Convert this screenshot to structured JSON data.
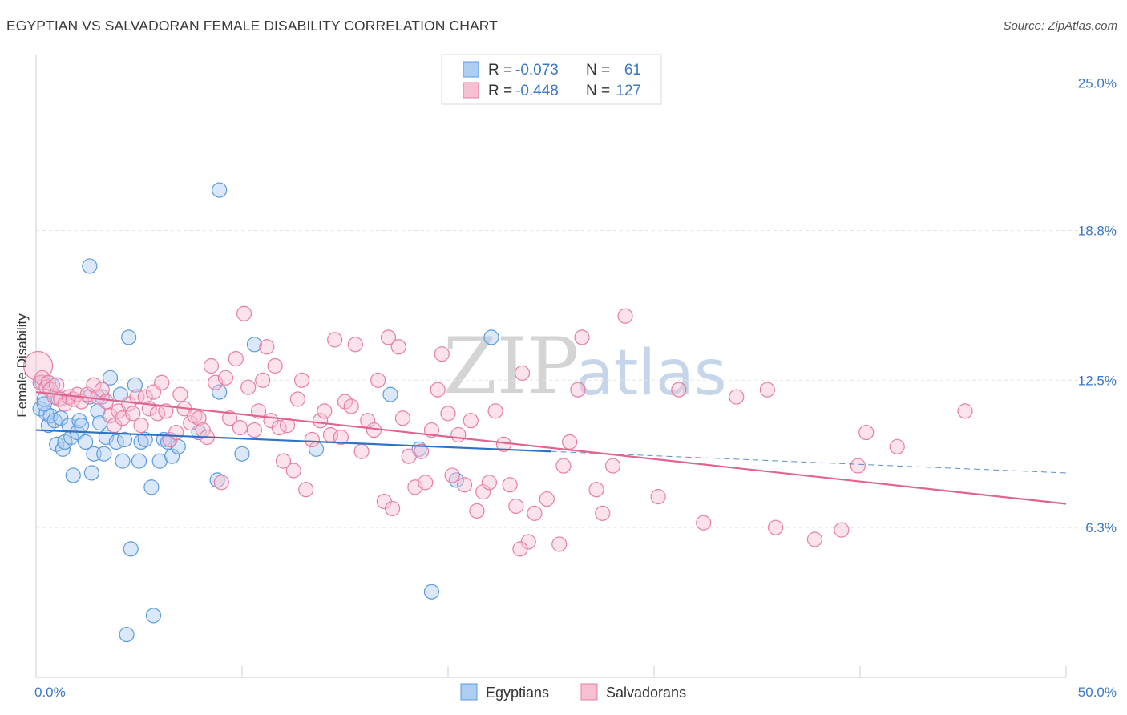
{
  "title": "EGYPTIAN VS SALVADORAN FEMALE DISABILITY CORRELATION CHART",
  "source": "Source: ZipAtlas.com",
  "watermark": {
    "zip": "ZIP",
    "atlas": "atlas"
  },
  "colors": {
    "egyptians": "#5b9be0",
    "egyptians_fill": "#aecdf2",
    "egyptians_line": "#2f73c9",
    "salvadorans": "#e87ea3",
    "salvadorans_fill": "#f6bfd2",
    "salvadorans_line": "#e0648f",
    "tick_label": "#3b78c8"
  },
  "legend": {
    "rows": [
      {
        "r_label": "R =",
        "r_value": "-0.073",
        "n_label": "N =",
        "n_value": "61"
      },
      {
        "r_label": "R =",
        "r_value": "-0.448",
        "n_label": "N =",
        "n_value": "127"
      }
    ]
  },
  "bottom_legend": [
    "Egyptians",
    "Salvadorans"
  ],
  "chart_data": {
    "type": "scatter",
    "title": "EGYPTIAN VS SALVADORAN FEMALE DISABILITY CORRELATION CHART",
    "xlabel": "",
    "ylabel": "Female Disability",
    "xlim": [
      0,
      50
    ],
    "ylim": [
      0,
      26.2
    ],
    "x_tick_labels": [
      "0.0%",
      "50.0%"
    ],
    "y_ticks": [
      6.3,
      12.5,
      18.8,
      25.0
    ],
    "y_tick_labels": [
      "6.3%",
      "12.5%",
      "18.8%",
      "25.0%"
    ],
    "grid": true,
    "legend_position": "top-center",
    "series": [
      {
        "name": "Egyptians",
        "r": -0.073,
        "n": 61,
        "trend": {
          "x0": 0,
          "y0": 10.4,
          "x1": 25,
          "y1": 9.5,
          "dashed_to_x": 50,
          "dashed_to_y": 8.6
        },
        "points": [
          [
            0.2,
            11.3
          ],
          [
            0.3,
            12.4
          ],
          [
            0.4,
            11.7
          ],
          [
            0.5,
            11.1
          ],
          [
            0.6,
            10.6
          ],
          [
            0.7,
            11.0
          ],
          [
            0.8,
            12.3
          ],
          [
            0.9,
            10.8
          ],
          [
            1.0,
            9.8
          ],
          [
            1.1,
            11.7
          ],
          [
            1.2,
            10.9
          ],
          [
            1.3,
            9.6
          ],
          [
            1.4,
            9.9
          ],
          [
            1.6,
            10.6
          ],
          [
            1.7,
            10.1
          ],
          [
            1.8,
            8.5
          ],
          [
            2.0,
            10.3
          ],
          [
            2.1,
            10.8
          ],
          [
            2.2,
            10.6
          ],
          [
            2.4,
            9.9
          ],
          [
            2.6,
            11.8
          ],
          [
            2.7,
            8.6
          ],
          [
            2.8,
            9.4
          ],
          [
            3.0,
            11.2
          ],
          [
            3.1,
            10.7
          ],
          [
            3.2,
            11.8
          ],
          [
            3.3,
            9.4
          ],
          [
            3.4,
            10.1
          ],
          [
            2.6,
            17.3
          ],
          [
            3.6,
            12.6
          ],
          [
            3.9,
            9.9
          ],
          [
            4.1,
            11.9
          ],
          [
            4.2,
            9.1
          ],
          [
            4.3,
            10.0
          ],
          [
            4.5,
            14.3
          ],
          [
            4.8,
            12.3
          ],
          [
            5.0,
            9.1
          ],
          [
            5.1,
            9.9
          ],
          [
            5.3,
            10.0
          ],
          [
            5.6,
            8.0
          ],
          [
            6.0,
            9.1
          ],
          [
            6.2,
            10.0
          ],
          [
            6.4,
            9.9
          ],
          [
            6.6,
            9.3
          ],
          [
            6.9,
            9.7
          ],
          [
            7.9,
            10.3
          ],
          [
            8.8,
            8.3
          ],
          [
            8.9,
            12.0
          ],
          [
            8.9,
            20.5
          ],
          [
            10.0,
            9.4
          ],
          [
            10.6,
            14.0
          ],
          [
            13.6,
            9.6
          ],
          [
            17.2,
            11.9
          ],
          [
            18.6,
            9.6
          ],
          [
            19.2,
            3.6
          ],
          [
            20.4,
            8.3
          ],
          [
            22.1,
            14.3
          ],
          [
            4.4,
            1.8
          ],
          [
            5.7,
            2.6
          ],
          [
            4.6,
            5.4
          ],
          [
            0.4,
            11.5
          ]
        ]
      },
      {
        "name": "Salvadorans",
        "r": -0.448,
        "n": 127,
        "trend": {
          "x0": 0,
          "y0": 12.0,
          "x1": 50,
          "y1": 7.3
        },
        "points": [
          [
            0.1,
            13.1
          ],
          [
            0.2,
            12.4
          ],
          [
            0.3,
            12.6
          ],
          [
            0.5,
            12.2
          ],
          [
            0.6,
            12.4
          ],
          [
            0.7,
            12.1
          ],
          [
            0.9,
            11.8
          ],
          [
            1.0,
            12.3
          ],
          [
            1.2,
            11.7
          ],
          [
            1.4,
            11.5
          ],
          [
            1.6,
            11.8
          ],
          [
            1.8,
            11.7
          ],
          [
            2.0,
            11.9
          ],
          [
            2.2,
            11.6
          ],
          [
            2.5,
            11.9
          ],
          [
            2.8,
            12.3
          ],
          [
            3.0,
            11.8
          ],
          [
            3.2,
            12.1
          ],
          [
            3.4,
            11.6
          ],
          [
            3.6,
            11.0
          ],
          [
            3.8,
            10.6
          ],
          [
            4.0,
            11.2
          ],
          [
            4.2,
            10.9
          ],
          [
            4.5,
            11.5
          ],
          [
            4.7,
            11.1
          ],
          [
            4.9,
            11.8
          ],
          [
            5.1,
            10.6
          ],
          [
            5.3,
            11.8
          ],
          [
            5.5,
            11.3
          ],
          [
            5.7,
            12.0
          ],
          [
            5.9,
            11.1
          ],
          [
            6.1,
            12.4
          ],
          [
            6.3,
            11.2
          ],
          [
            6.5,
            10.0
          ],
          [
            6.8,
            10.3
          ],
          [
            7.0,
            11.9
          ],
          [
            7.2,
            11.3
          ],
          [
            7.5,
            10.7
          ],
          [
            7.7,
            11.0
          ],
          [
            7.9,
            10.9
          ],
          [
            8.1,
            10.4
          ],
          [
            8.3,
            10.1
          ],
          [
            8.5,
            13.1
          ],
          [
            8.7,
            12.4
          ],
          [
            9.0,
            8.2
          ],
          [
            9.2,
            12.6
          ],
          [
            9.4,
            10.9
          ],
          [
            9.7,
            13.4
          ],
          [
            9.9,
            10.5
          ],
          [
            10.1,
            15.3
          ],
          [
            10.3,
            12.2
          ],
          [
            10.6,
            10.4
          ],
          [
            10.8,
            11.2
          ],
          [
            11.0,
            12.5
          ],
          [
            11.2,
            13.9
          ],
          [
            11.4,
            10.8
          ],
          [
            11.6,
            13.1
          ],
          [
            11.8,
            10.5
          ],
          [
            12.0,
            9.1
          ],
          [
            12.2,
            10.6
          ],
          [
            12.5,
            8.7
          ],
          [
            12.7,
            11.7
          ],
          [
            12.9,
            12.5
          ],
          [
            13.1,
            7.9
          ],
          [
            13.4,
            10.0
          ],
          [
            13.8,
            10.8
          ],
          [
            14.0,
            11.2
          ],
          [
            14.3,
            10.2
          ],
          [
            14.5,
            14.2
          ],
          [
            14.8,
            10.1
          ],
          [
            15.0,
            11.6
          ],
          [
            15.3,
            11.4
          ],
          [
            15.5,
            14.0
          ],
          [
            15.8,
            9.5
          ],
          [
            16.1,
            10.8
          ],
          [
            16.4,
            10.4
          ],
          [
            16.6,
            12.5
          ],
          [
            16.9,
            7.4
          ],
          [
            17.1,
            14.3
          ],
          [
            17.3,
            7.1
          ],
          [
            17.6,
            13.9
          ],
          [
            17.8,
            10.9
          ],
          [
            18.1,
            9.3
          ],
          [
            18.4,
            8.0
          ],
          [
            18.7,
            9.5
          ],
          [
            18.9,
            8.2
          ],
          [
            19.2,
            10.4
          ],
          [
            19.5,
            12.1
          ],
          [
            19.7,
            13.6
          ],
          [
            20.0,
            11.1
          ],
          [
            20.2,
            8.5
          ],
          [
            20.5,
            10.2
          ],
          [
            20.8,
            8.1
          ],
          [
            21.1,
            10.8
          ],
          [
            21.4,
            7.0
          ],
          [
            21.7,
            7.8
          ],
          [
            22.0,
            8.2
          ],
          [
            22.3,
            11.2
          ],
          [
            22.7,
            9.8
          ],
          [
            23.0,
            8.1
          ],
          [
            23.3,
            7.2
          ],
          [
            23.6,
            12.8
          ],
          [
            23.9,
            5.7
          ],
          [
            24.2,
            6.9
          ],
          [
            24.8,
            7.5
          ],
          [
            25.4,
            5.6
          ],
          [
            25.6,
            8.9
          ],
          [
            25.9,
            9.9
          ],
          [
            26.3,
            12.1
          ],
          [
            26.5,
            14.3
          ],
          [
            27.2,
            7.9
          ],
          [
            27.5,
            6.9
          ],
          [
            28.0,
            8.9
          ],
          [
            28.6,
            15.2
          ],
          [
            30.2,
            7.6
          ],
          [
            31.2,
            12.1
          ],
          [
            32.4,
            6.5
          ],
          [
            34.0,
            11.8
          ],
          [
            35.5,
            12.1
          ],
          [
            35.9,
            6.3
          ],
          [
            37.8,
            5.8
          ],
          [
            39.1,
            6.2
          ],
          [
            40.3,
            10.3
          ],
          [
            41.8,
            9.7
          ],
          [
            39.9,
            8.9
          ],
          [
            45.1,
            11.2
          ],
          [
            23.5,
            5.4
          ]
        ]
      }
    ]
  }
}
